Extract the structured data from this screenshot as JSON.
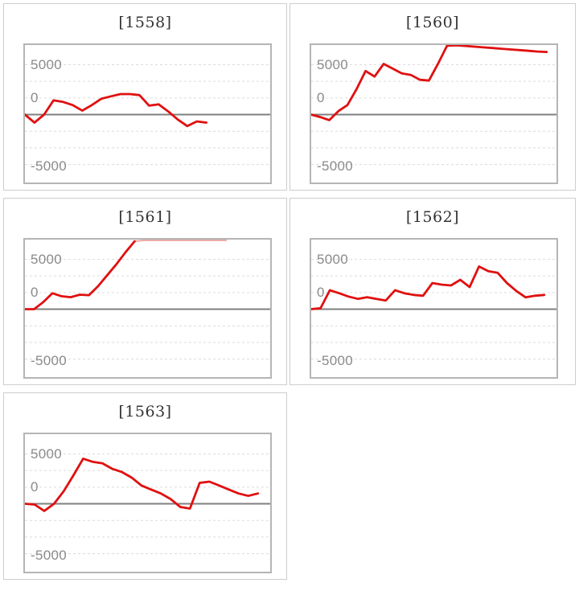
{
  "page": {
    "background_color": "#ffffff",
    "panel_border_color": "#cdcdcd"
  },
  "axis_style": {
    "plot_border_color": "#b5b5b5",
    "grid_color": "#dcdcdc",
    "zero_line_color": "#7f7f7f",
    "label_color": "#8a8a8a",
    "series_color": "#e01010",
    "capped_segment_color": "#eda6a2"
  },
  "chart_data": [
    {
      "type": "line",
      "title": "[1558]",
      "y_tick_labels": [
        "5000",
        "0",
        "-5000"
      ],
      "x_tick_labels": [],
      "grid": true,
      "y_gridline_step": 1667,
      "y_range_approx": [
        -6900,
        6900
      ],
      "zero_line": true,
      "x_span_fraction": 0.74,
      "values": [
        0,
        -800,
        0,
        1430,
        1270,
        950,
        400,
        950,
        1590,
        1830,
        2060,
        2060,
        1950,
        900,
        1030,
        320,
        -500,
        -1150,
        -680,
        -800
      ]
    },
    {
      "type": "line",
      "title": "[1560]",
      "y_tick_labels": [
        "5000",
        "0",
        "-5000"
      ],
      "x_tick_labels": [],
      "grid": true,
      "y_gridline_step": 1667,
      "y_range_approx": [
        -6900,
        6900
      ],
      "zero_line": true,
      "x_span_fraction": 0.96,
      "values": [
        0,
        -250,
        -550,
        350,
        950,
        2540,
        4370,
        3810,
        5080,
        4600,
        4130,
        3970,
        3490,
        3410,
        5100,
        6900,
        6950,
        6880,
        6810,
        6740,
        6670,
        6600,
        6530,
        6460,
        6390,
        6320,
        6280
      ]
    },
    {
      "type": "line",
      "title": "[1561]",
      "y_tick_labels": [
        "5000",
        "0",
        "-5000"
      ],
      "x_tick_labels": [],
      "grid": true,
      "y_gridline_step": 1667,
      "y_range_approx": [
        -6900,
        6900
      ],
      "zero_line": true,
      "x_span_fraction": 0.82,
      "cap_start_index": 12,
      "values": [
        0,
        0,
        700,
        1600,
        1300,
        1200,
        1450,
        1400,
        2300,
        3400,
        4500,
        5700,
        6800,
        6900,
        6900,
        6900,
        6900,
        6900,
        6900,
        6900,
        6900,
        6900,
        6900
      ]
    },
    {
      "type": "line",
      "title": "[1562]",
      "y_tick_labels": [
        "5000",
        "0",
        "-5000"
      ],
      "x_tick_labels": [],
      "grid": true,
      "y_gridline_step": 1667,
      "y_range_approx": [
        -6900,
        6900
      ],
      "zero_line": true,
      "x_span_fraction": 0.95,
      "values": [
        0,
        100,
        1900,
        1600,
        1270,
        1030,
        1200,
        1030,
        870,
        1900,
        1600,
        1430,
        1350,
        2620,
        2460,
        2380,
        2940,
        2220,
        4280,
        3810,
        3650,
        2620,
        1830,
        1190,
        1350,
        1430
      ]
    },
    {
      "type": "line",
      "title": "[1563]",
      "y_tick_labels": [
        "5000",
        "0",
        "-5000"
      ],
      "x_tick_labels": [],
      "grid": true,
      "y_gridline_step": 1667,
      "y_range_approx": [
        -6900,
        6900
      ],
      "zero_line": true,
      "x_span_fraction": 0.95,
      "values": [
        0,
        -80,
        -715,
        0,
        1270,
        2860,
        4520,
        4200,
        4050,
        3500,
        3180,
        2620,
        1830,
        1430,
        1030,
        480,
        -320,
        -480,
        2100,
        2220,
        1830,
        1430,
        1030,
        790,
        1030
      ]
    }
  ]
}
